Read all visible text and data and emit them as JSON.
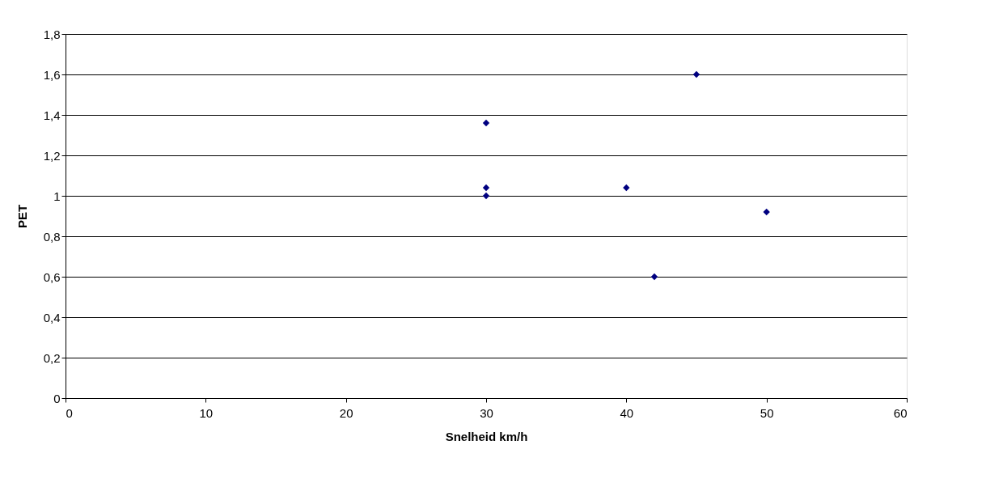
{
  "chart_data": {
    "type": "scatter",
    "xlabel": "Snelheid km/h",
    "ylabel": "PET",
    "series": [
      {
        "color": "#000080",
        "x": [
          30,
          30,
          30,
          40,
          42,
          45,
          50
        ],
        "values": [
          1.36,
          1.04,
          1.0,
          1.04,
          0.6,
          1.6,
          0.92
        ]
      }
    ],
    "xlim": [
      0,
      60
    ],
    "xticks": [
      0,
      10,
      20,
      30,
      40,
      50,
      60
    ],
    "ylim": [
      0,
      1.8
    ],
    "yticks": [
      0,
      {
        "value": 0.2,
        "label": "0,2"
      },
      {
        "value": 0.4,
        "label": "0,4"
      },
      {
        "value": 0.6,
        "label": "0,6"
      },
      {
        "value": 0.8,
        "label": "0,8"
      },
      1,
      {
        "value": 1.2,
        "label": "1,2"
      },
      {
        "value": 1.4,
        "label": "1,4"
      },
      {
        "value": 1.6,
        "label": "1,6"
      },
      {
        "value": 1.8,
        "label": "1,8"
      }
    ],
    "grid": "y",
    "marker": "diamond"
  }
}
